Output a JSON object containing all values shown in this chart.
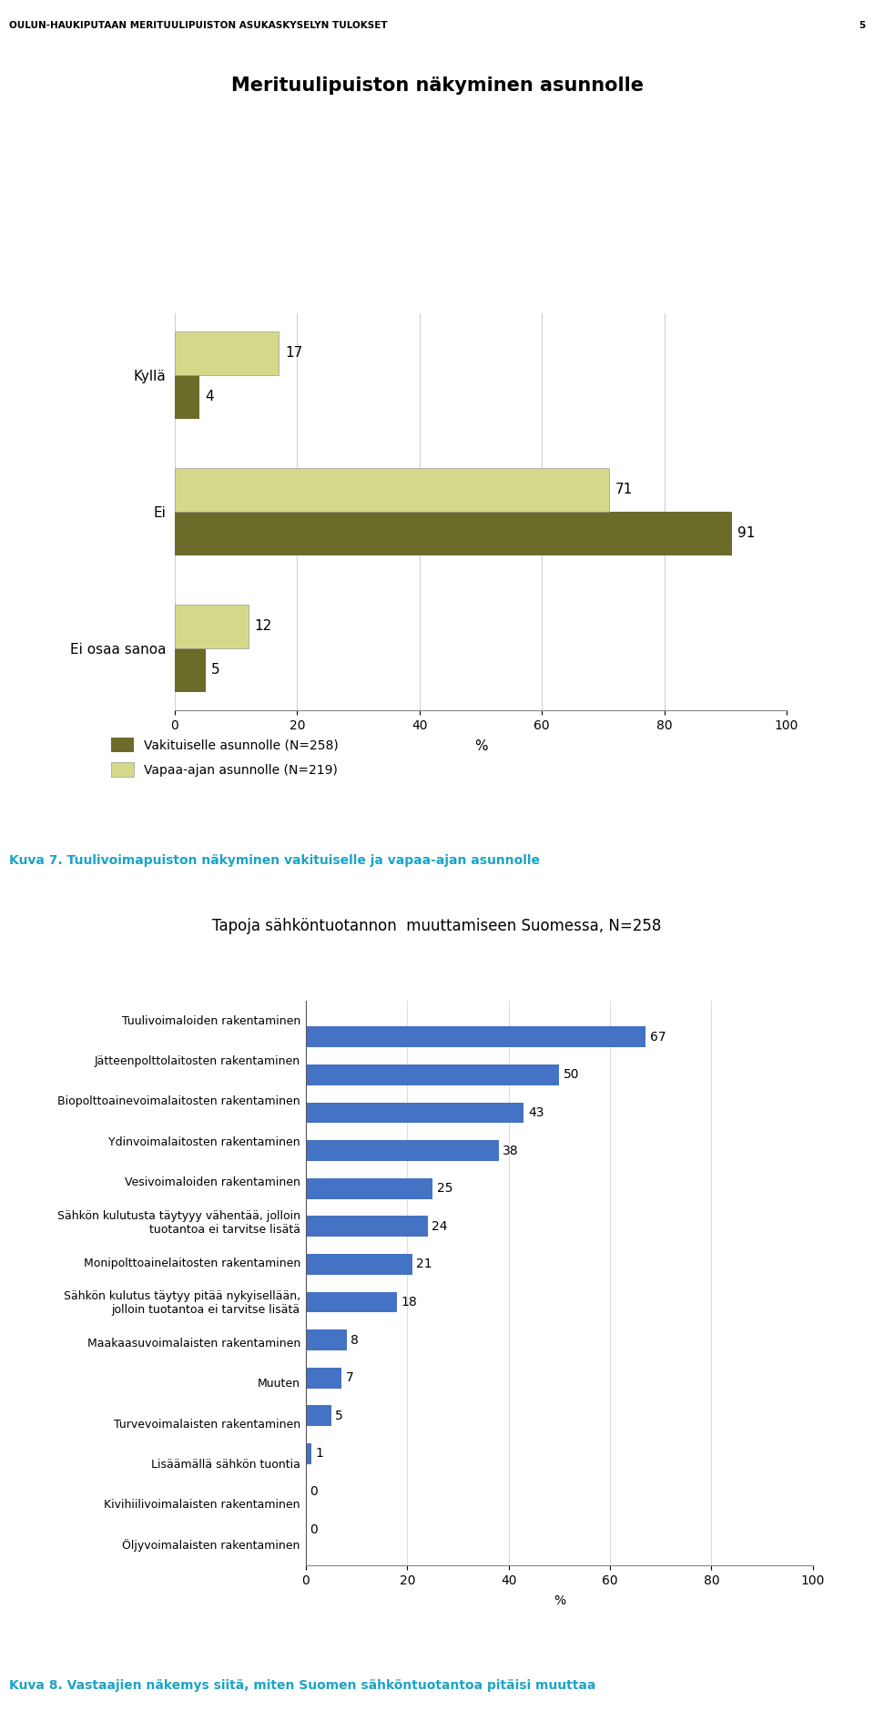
{
  "header_text": "OULUN-HAUKIPUTAAN MERITUULIPUISTON ASUKASKYSELYN TULOKSET",
  "header_page": "5",
  "chart1_title": "Merituulipuiston näkyminen asunnolle",
  "chart1_categories": [
    "Kyllä",
    "Ei",
    "Ei osaa sanoa"
  ],
  "chart1_series1_label": "Vakituiselle asunnolle (N=258)",
  "chart1_series2_label": "Vapaa-ajan asunnolle (N=219)",
  "chart1_series1_values": [
    4,
    91,
    5
  ],
  "chart1_series2_values": [
    17,
    71,
    12
  ],
  "chart1_color1": "#6b6b2a",
  "chart1_color2": "#d4d98a",
  "chart1_xlim": [
    0,
    100
  ],
  "chart1_xticks": [
    0,
    20,
    40,
    60,
    80,
    100
  ],
  "caption1": "Kuva 7. Tuulivoimapuiston näkyminen vakituiselle ja vapaa-ajan asunnolle",
  "caption_color": "#1ba3c6",
  "chart2_title": "Tapoja sähköntuotannon  muuttamiseen Suomessa, N=258",
  "chart2_categories": [
    "Tuulivoimaloiden rakentaminen",
    "Jätteenpolttolaitosten rakentaminen",
    "Biopolttoainevoimalaitosten rakentaminen",
    "Ydinvoimalaitosten rakentaminen",
    "Vesivoimaloiden rakentaminen",
    "Sähkön kulutusta täytyyy vähentää, jolloin\ntuotantoa ei tarvitse lisätä",
    "Monipolttoainelaitosten rakentaminen",
    "Sähkön kulutus täytyy pitää nykyisellään,\njolloin tuotantoa ei tarvitse lisätä",
    "Maakaasuvoimalaisten rakentaminen",
    "Muuten",
    "Turvevoimalaisten rakentaminen",
    "Lisäämällä sähkön tuontia",
    "Kivihiilivoimalaisten rakentaminen",
    "Öljyvoimalaisten rakentaminen"
  ],
  "chart2_values": [
    67,
    50,
    43,
    38,
    25,
    24,
    21,
    18,
    8,
    7,
    5,
    1,
    0,
    0
  ],
  "chart2_color": "#4472c4",
  "chart2_xlim": [
    0,
    100
  ],
  "chart2_xticks": [
    0,
    20,
    40,
    60,
    80,
    100
  ],
  "caption2": "Kuva 8. Vastaajien näkemys siitä, miten Suomen sähköntuotantoa pitäisi muuttaa"
}
